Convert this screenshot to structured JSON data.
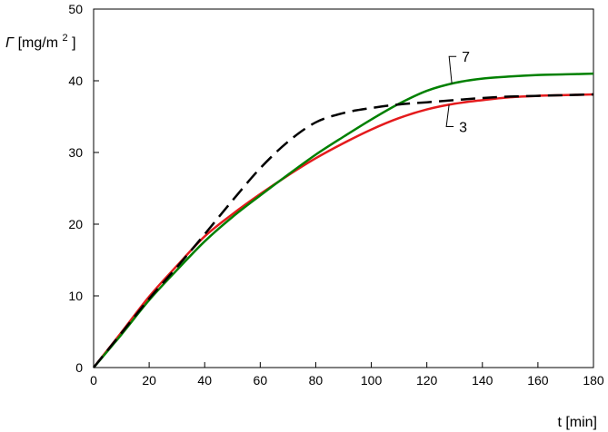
{
  "chart_data": {
    "type": "line",
    "xlabel": "t [min]",
    "ylabel": {
      "symbol": "Γ",
      "unit_base": "[mg/m",
      "unit_exp": "2",
      "unit_close": "]"
    },
    "xlim": [
      0,
      180
    ],
    "ylim": [
      0,
      50
    ],
    "xticks": [
      0,
      20,
      40,
      60,
      80,
      100,
      120,
      140,
      160,
      180
    ],
    "yticks": [
      0,
      10,
      20,
      30,
      40,
      50
    ],
    "grid": false,
    "series": [
      {
        "color": "#e41a1c",
        "style": "solid",
        "x": [
          0,
          10,
          20,
          30,
          40,
          50,
          60,
          70,
          80,
          90,
          100,
          110,
          120,
          130,
          140,
          150,
          160,
          170,
          180
        ],
        "y": [
          0,
          4.9,
          9.9,
          14.2,
          18.3,
          21.4,
          24.2,
          26.8,
          29.2,
          31.3,
          33.2,
          34.8,
          36.0,
          36.8,
          37.3,
          37.7,
          37.9,
          38.0,
          38.1
        ]
      },
      {
        "color": "#008000",
        "style": "solid",
        "x": [
          0,
          10,
          20,
          30,
          40,
          50,
          60,
          70,
          80,
          90,
          100,
          110,
          120,
          130,
          140,
          150,
          160,
          170,
          180
        ],
        "y": [
          0,
          4.6,
          9.4,
          13.6,
          17.6,
          21.0,
          24.0,
          26.9,
          29.7,
          32.2,
          34.6,
          36.8,
          38.6,
          39.7,
          40.3,
          40.6,
          40.8,
          40.9,
          41.0
        ]
      },
      {
        "color": "#000000",
        "style": "dashed",
        "x": [
          0,
          10,
          20,
          30,
          40,
          50,
          60,
          70,
          80,
          90,
          100,
          110,
          120,
          130,
          140,
          150,
          160,
          170,
          180
        ],
        "y": [
          0,
          4.8,
          9.6,
          14.0,
          18.6,
          23.3,
          27.8,
          31.5,
          34.2,
          35.5,
          36.2,
          36.7,
          37.0,
          37.3,
          37.6,
          37.8,
          37.9,
          38.0,
          38.1
        ]
      }
    ],
    "annotations": [
      {
        "text": "7",
        "series_index": 1
      },
      {
        "text": "3",
        "series_index": 0
      }
    ]
  }
}
